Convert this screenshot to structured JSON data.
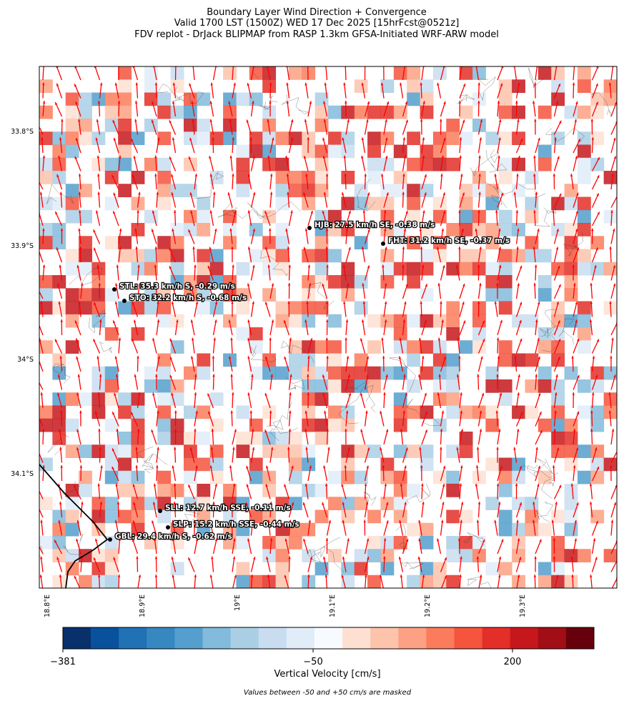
{
  "title": [
    "Boundary Layer Wind Direction + Convergence",
    "Valid 1700 LST (1500Z) WED 17 Dec 2025 [15hrFcst@0521z]",
    "FDV replot - DrJack BLIPMAP from RASP 1.3km GFSA-Initiated WRF-ARW model"
  ],
  "axes": {
    "lat_ticks": [
      "33.8°S",
      "33.9°S",
      "34°S",
      "34.1°S"
    ],
    "lon_ticks": [
      "18.8°E",
      "18.9°E",
      "19°E",
      "19.1°E",
      "19.2°E",
      "19.3°E"
    ]
  },
  "stations": [
    {
      "label": "HJB: 27.5 km/h SE, -0.38 m/s"
    },
    {
      "label": "FHT: 31.2 km/h SE, -0.37 m/s"
    },
    {
      "label": "STL: 35.3 km/h S, -0.29 m/s"
    },
    {
      "label": "STO: 32.2 km/h S, -0.68 m/s"
    },
    {
      "label": "SLL: 12.7 km/h SSE, -0.11 m/s"
    },
    {
      "label": "SLP: 15.2 km/h SSE, -0.44 m/s"
    },
    {
      "label": "GBL: 29.4 km/h S, -0.62 m/s"
    }
  ],
  "colorbar": {
    "label": "Vertical Velocity [cm/s]",
    "ticks": [
      {
        "value": -381,
        "label": "−381"
      },
      {
        "value": -50,
        "label": "−50"
      },
      200
    ],
    "colors": [
      "#08306b",
      "#08519c",
      "#2171b5",
      "#3787c0",
      "#549fcd",
      "#82bbdb",
      "#aacfe5",
      "#c9ddf0",
      "#e0ecf8",
      "#f7fbff",
      "#fee0d2",
      "#fdc3ab",
      "#fca183",
      "#fb7c5c",
      "#f5543d",
      "#e32f27",
      "#c5171c",
      "#a10e15",
      "#67000d"
    ]
  },
  "note": "Values between -50 and +50 cm/s are masked"
}
